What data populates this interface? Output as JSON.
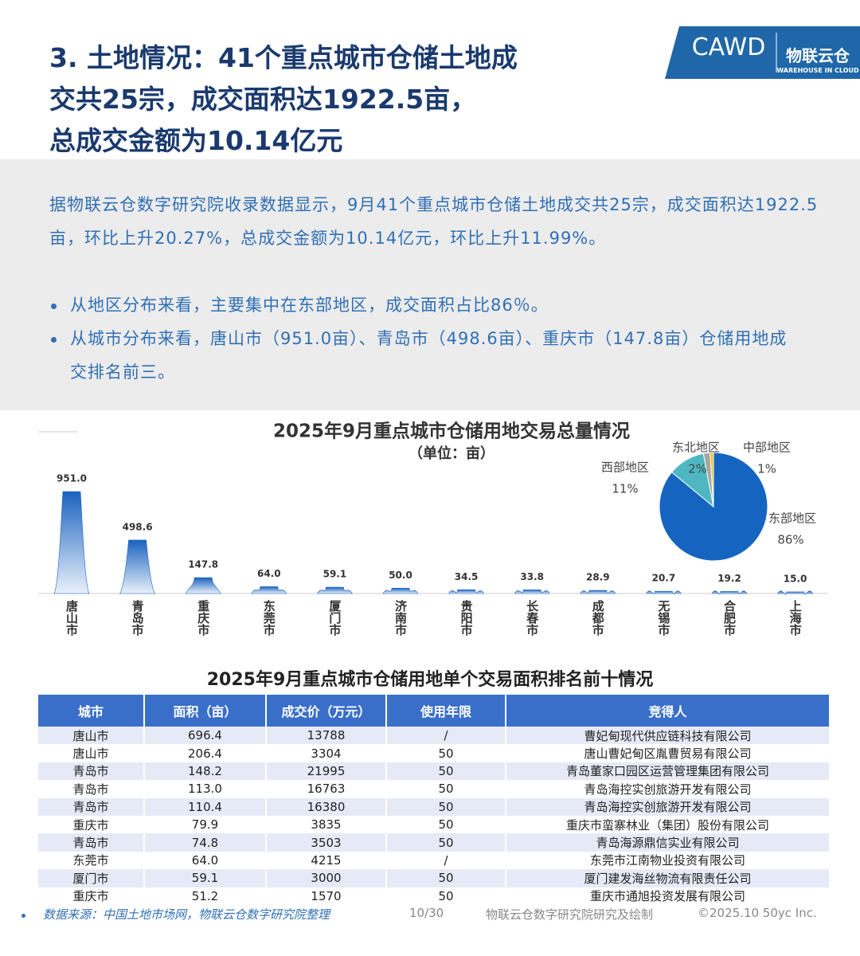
{
  "header": {
    "title_lines": [
      "3. 土地情况：41个重点城市仓储土地成",
      "交共25宗，成交面积达1922.5亩，",
      "总成交金额为10.14亿元"
    ],
    "logo": {
      "brand": "CAWD",
      "brand_cn": "物联云仓",
      "tagline": "WAREHOUSE IN CLOUD"
    }
  },
  "summary": {
    "paragraph": "据物联云仓数字研究院收录数据显示，9月41个重点城市仓储土地成交共25宗，成交面积达1922.5亩，环比上升20.27%，总成交金额为10.14亿元，环比上升11.99%。",
    "bullets": [
      "从地区分布来看，主要集中在东部地区，成交面积占比86％。",
      "从城市分布来看，唐山市（951.0亩）、青岛市（498.6亩）、重庆市（147.8亩）仓储用地成交排名前三。"
    ]
  },
  "chart_data": [
    {
      "type": "bar",
      "title": "2025年9月重点城市仓储用地交易总量情况",
      "subtitle": "（单位：亩）",
      "categories": [
        "唐山市",
        "青岛市",
        "重庆市",
        "东莞市",
        "厦门市",
        "济南市",
        "贵阳市",
        "长春市",
        "成都市",
        "无锡市",
        "合肥市",
        "上海市"
      ],
      "values": [
        951.0,
        498.6,
        147.8,
        64.0,
        59.1,
        50.0,
        34.5,
        33.8,
        28.9,
        20.7,
        19.2,
        15.0
      ],
      "value_labels": [
        "951.0",
        "498.6",
        "147.8",
        "64.0",
        "59.1",
        "50.0",
        "34.5",
        "33.8",
        "28.9",
        "20.7",
        "19.2",
        "15.0"
      ],
      "color": "#1a62bf"
    },
    {
      "type": "pie",
      "categories": [
        "东部地区",
        "西部地区",
        "东北地区",
        "中部地区"
      ],
      "values": [
        86,
        11,
        2,
        1
      ],
      "value_labels": [
        "86%",
        "11%",
        "2%",
        "1%"
      ],
      "colors": [
        "#1565c0",
        "#4fb7c1",
        "#a6a6a6",
        "#f0c419"
      ]
    }
  ],
  "table": {
    "title": "2025年9月重点城市仓储用地单个交易面积排名前十情况",
    "headers": [
      "城市",
      "面积（亩）",
      "成交价（万元）",
      "使用年限",
      "竞得人"
    ],
    "rows": [
      [
        "唐山市",
        "696.4",
        "13788",
        "/",
        "曹妃甸现代供应链科技有限公司"
      ],
      [
        "唐山市",
        "206.4",
        "3304",
        "50",
        "唐山曹妃甸区胤曹贸易有限公司"
      ],
      [
        "青岛市",
        "148.2",
        "21995",
        "50",
        "青岛董家口园区运营管理集团有限公司"
      ],
      [
        "青岛市",
        "113.0",
        "16763",
        "50",
        "青岛海控实创旅游开发有限公司"
      ],
      [
        "青岛市",
        "110.4",
        "16380",
        "50",
        "青岛海控实创旅游开发有限公司"
      ],
      [
        "重庆市",
        "79.9",
        "3835",
        "50",
        "重庆市蛮寨林业（集团）股份有限公司"
      ],
      [
        "青岛市",
        "74.8",
        "3503",
        "50",
        "青岛海源鼎信实业有限公司"
      ],
      [
        "东莞市",
        "64.0",
        "4215",
        "/",
        "东莞市江南物业投资有限公司"
      ],
      [
        "厦门市",
        "59.1",
        "3000",
        "50",
        "厦门建发海丝物流有限责任公司"
      ],
      [
        "重庆市",
        "51.2",
        "1570",
        "50",
        "重庆市通旭投资发展有限公司"
      ]
    ]
  },
  "footer": {
    "source": "数据来源：中国土地市场网，物联云仓数字研究院整理",
    "page": "10/30",
    "credit": "物联云仓数字研究院研究及绘制",
    "copyright": "©2025.10 50yc Inc."
  }
}
